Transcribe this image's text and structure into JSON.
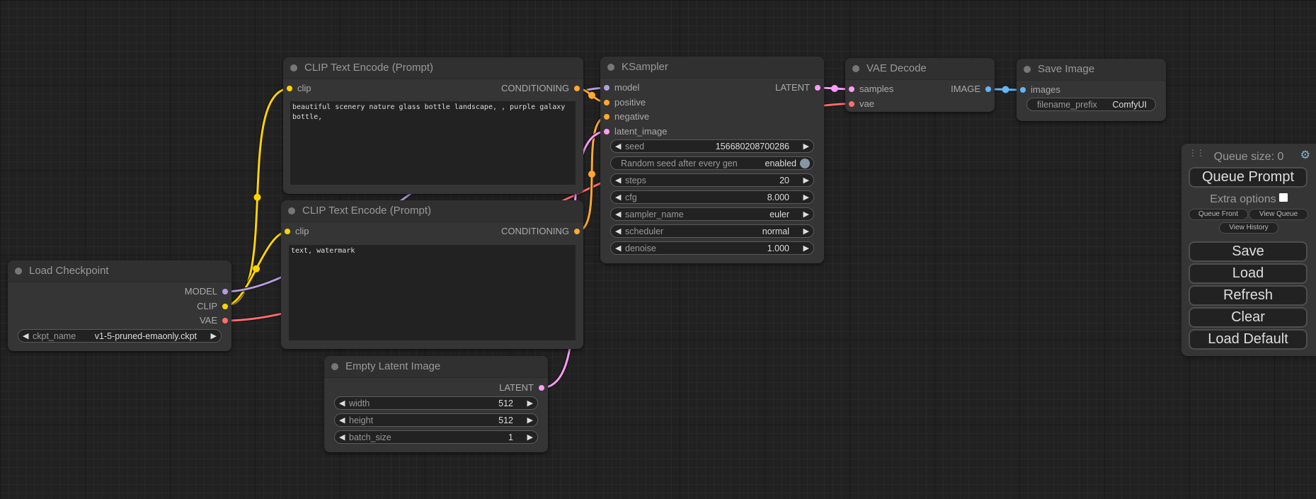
{
  "colors": {
    "CLIP": "#ffd500",
    "MODEL": "#b39ddb",
    "VAE": "#ff6e6e",
    "CONDITIONING": "#ffa931",
    "LATENT": "#ff9cf9",
    "IMAGE": "#64b5f6"
  },
  "nodes": {
    "clip_pos": {
      "title": "CLIP Text Encode (Prompt)",
      "inputs": [
        {
          "name": "clip",
          "type": "CLIP"
        }
      ],
      "outputs": [
        {
          "name": "CONDITIONING",
          "type": "CONDITIONING"
        }
      ],
      "text": "beautiful scenery nature glass bottle landscape, , purple galaxy bottle,"
    },
    "clip_neg": {
      "title": "CLIP Text Encode (Prompt)",
      "inputs": [
        {
          "name": "clip",
          "type": "CLIP"
        }
      ],
      "outputs": [
        {
          "name": "CONDITIONING",
          "type": "CONDITIONING"
        }
      ],
      "text": "text, watermark"
    },
    "ckpt": {
      "title": "Load Checkpoint",
      "inputs": [],
      "outputs": [
        {
          "name": "MODEL",
          "type": "MODEL"
        },
        {
          "name": "CLIP",
          "type": "CLIP"
        },
        {
          "name": "VAE",
          "type": "VAE"
        }
      ],
      "widgets": [
        {
          "kind": "combo",
          "label": "ckpt_name",
          "value": "v1-5-pruned-emaonly.ckpt"
        }
      ]
    },
    "latent": {
      "title": "Empty Latent Image",
      "inputs": [],
      "outputs": [
        {
          "name": "LATENT",
          "type": "LATENT"
        }
      ],
      "widgets": [
        {
          "kind": "number",
          "label": "width",
          "value": "512"
        },
        {
          "kind": "number",
          "label": "height",
          "value": "512"
        },
        {
          "kind": "number",
          "label": "batch_size",
          "value": "1"
        }
      ]
    },
    "ksampler": {
      "title": "KSampler",
      "inputs": [
        {
          "name": "model",
          "type": "MODEL"
        },
        {
          "name": "positive",
          "type": "CONDITIONING"
        },
        {
          "name": "negative",
          "type": "CONDITIONING"
        },
        {
          "name": "latent_image",
          "type": "LATENT"
        }
      ],
      "outputs": [
        {
          "name": "LATENT",
          "type": "LATENT"
        }
      ],
      "widgets": [
        {
          "kind": "number",
          "label": "seed",
          "value": "156680208700286"
        },
        {
          "kind": "toggle",
          "label": "Random seed after every gen",
          "value": "enabled"
        },
        {
          "kind": "number",
          "label": "steps",
          "value": "20"
        },
        {
          "kind": "number",
          "label": "cfg",
          "value": "8.000"
        },
        {
          "kind": "combo",
          "label": "sampler_name",
          "value": "euler"
        },
        {
          "kind": "combo",
          "label": "scheduler",
          "value": "normal"
        },
        {
          "kind": "number",
          "label": "denoise",
          "value": "1.000"
        }
      ]
    },
    "vaedecode": {
      "title": "VAE Decode",
      "inputs": [
        {
          "name": "samples",
          "type": "LATENT"
        },
        {
          "name": "vae",
          "type": "VAE"
        }
      ],
      "outputs": [
        {
          "name": "IMAGE",
          "type": "IMAGE"
        }
      ]
    },
    "save": {
      "title": "Save Image",
      "inputs": [
        {
          "name": "images",
          "type": "IMAGE"
        }
      ],
      "outputs": [],
      "widgets": [
        {
          "kind": "text",
          "label": "filename_prefix",
          "value": "ComfyUI"
        }
      ]
    }
  },
  "links": [
    [
      "ckpt",
      1,
      "clip_pos",
      0,
      "CLIP"
    ],
    [
      "ckpt",
      1,
      "clip_neg",
      0,
      "CLIP"
    ],
    [
      "ckpt",
      0,
      "ksampler",
      0,
      "MODEL"
    ],
    [
      "ckpt",
      2,
      "vaedecode",
      1,
      "VAE"
    ],
    [
      "clip_pos",
      0,
      "ksampler",
      1,
      "CONDITIONING"
    ],
    [
      "clip_neg",
      0,
      "ksampler",
      2,
      "CONDITIONING"
    ],
    [
      "latent",
      0,
      "ksampler",
      3,
      "LATENT"
    ],
    [
      "ksampler",
      0,
      "vaedecode",
      0,
      "LATENT"
    ],
    [
      "vaedecode",
      0,
      "save",
      0,
      "IMAGE"
    ]
  ],
  "menu": {
    "queue_size": "Queue size: 0",
    "queue_prompt": "Queue Prompt",
    "extra_options": "Extra options",
    "queue_front": "Queue Front",
    "view_queue": "View Queue",
    "view_history": "View History",
    "save": "Save",
    "load": "Load",
    "refresh": "Refresh",
    "clear": "Clear",
    "load_default": "Load Default"
  }
}
